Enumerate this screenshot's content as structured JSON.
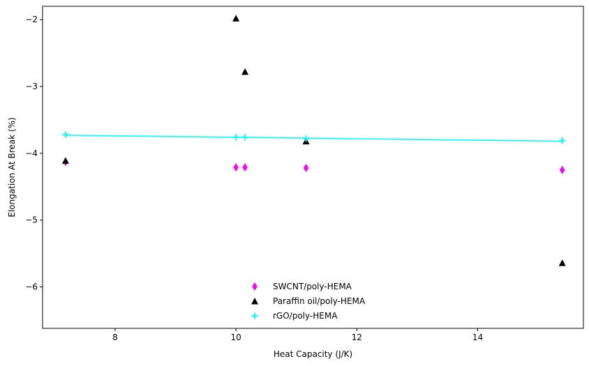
{
  "chart_data": {
    "type": "scatter",
    "xlabel": "Heat Capacity (J/K)",
    "ylabel": "Elongation At Break (%)",
    "xlim": [
      6.8,
      15.75
    ],
    "ylim": [
      -6.62,
      -1.8
    ],
    "xticks": [
      8,
      10,
      12,
      14
    ],
    "yticks": [
      -6,
      -5,
      -4,
      -3,
      -2
    ],
    "grid": false,
    "legend_position": "lower center",
    "series": [
      {
        "name": "SWCNT/poly-HEMA",
        "marker": "diamond",
        "color": "#ff00ff",
        "x": [
          7.18,
          10.0,
          10.15,
          11.16,
          15.4
        ],
        "y": [
          -4.13,
          -4.21,
          -4.21,
          -4.22,
          -4.25
        ]
      },
      {
        "name": "Paraffin oil/poly-HEMA",
        "marker": "triangle",
        "color": "#000000",
        "x": [
          7.18,
          10.0,
          10.15,
          11.16,
          15.4
        ],
        "y": [
          -4.11,
          -1.98,
          -2.78,
          -3.82,
          -5.64
        ]
      },
      {
        "name": "rGO/poly-HEMA",
        "marker": "plus",
        "color": "#00ffff",
        "x": [
          7.18,
          10.0,
          10.15,
          11.16,
          15.4
        ],
        "y": [
          -3.72,
          -3.76,
          -3.76,
          -3.78,
          -3.81
        ]
      }
    ],
    "fit_line": {
      "color": "#00ffff",
      "x": [
        7.18,
        15.4
      ],
      "y": [
        -3.73,
        -3.82
      ]
    }
  }
}
